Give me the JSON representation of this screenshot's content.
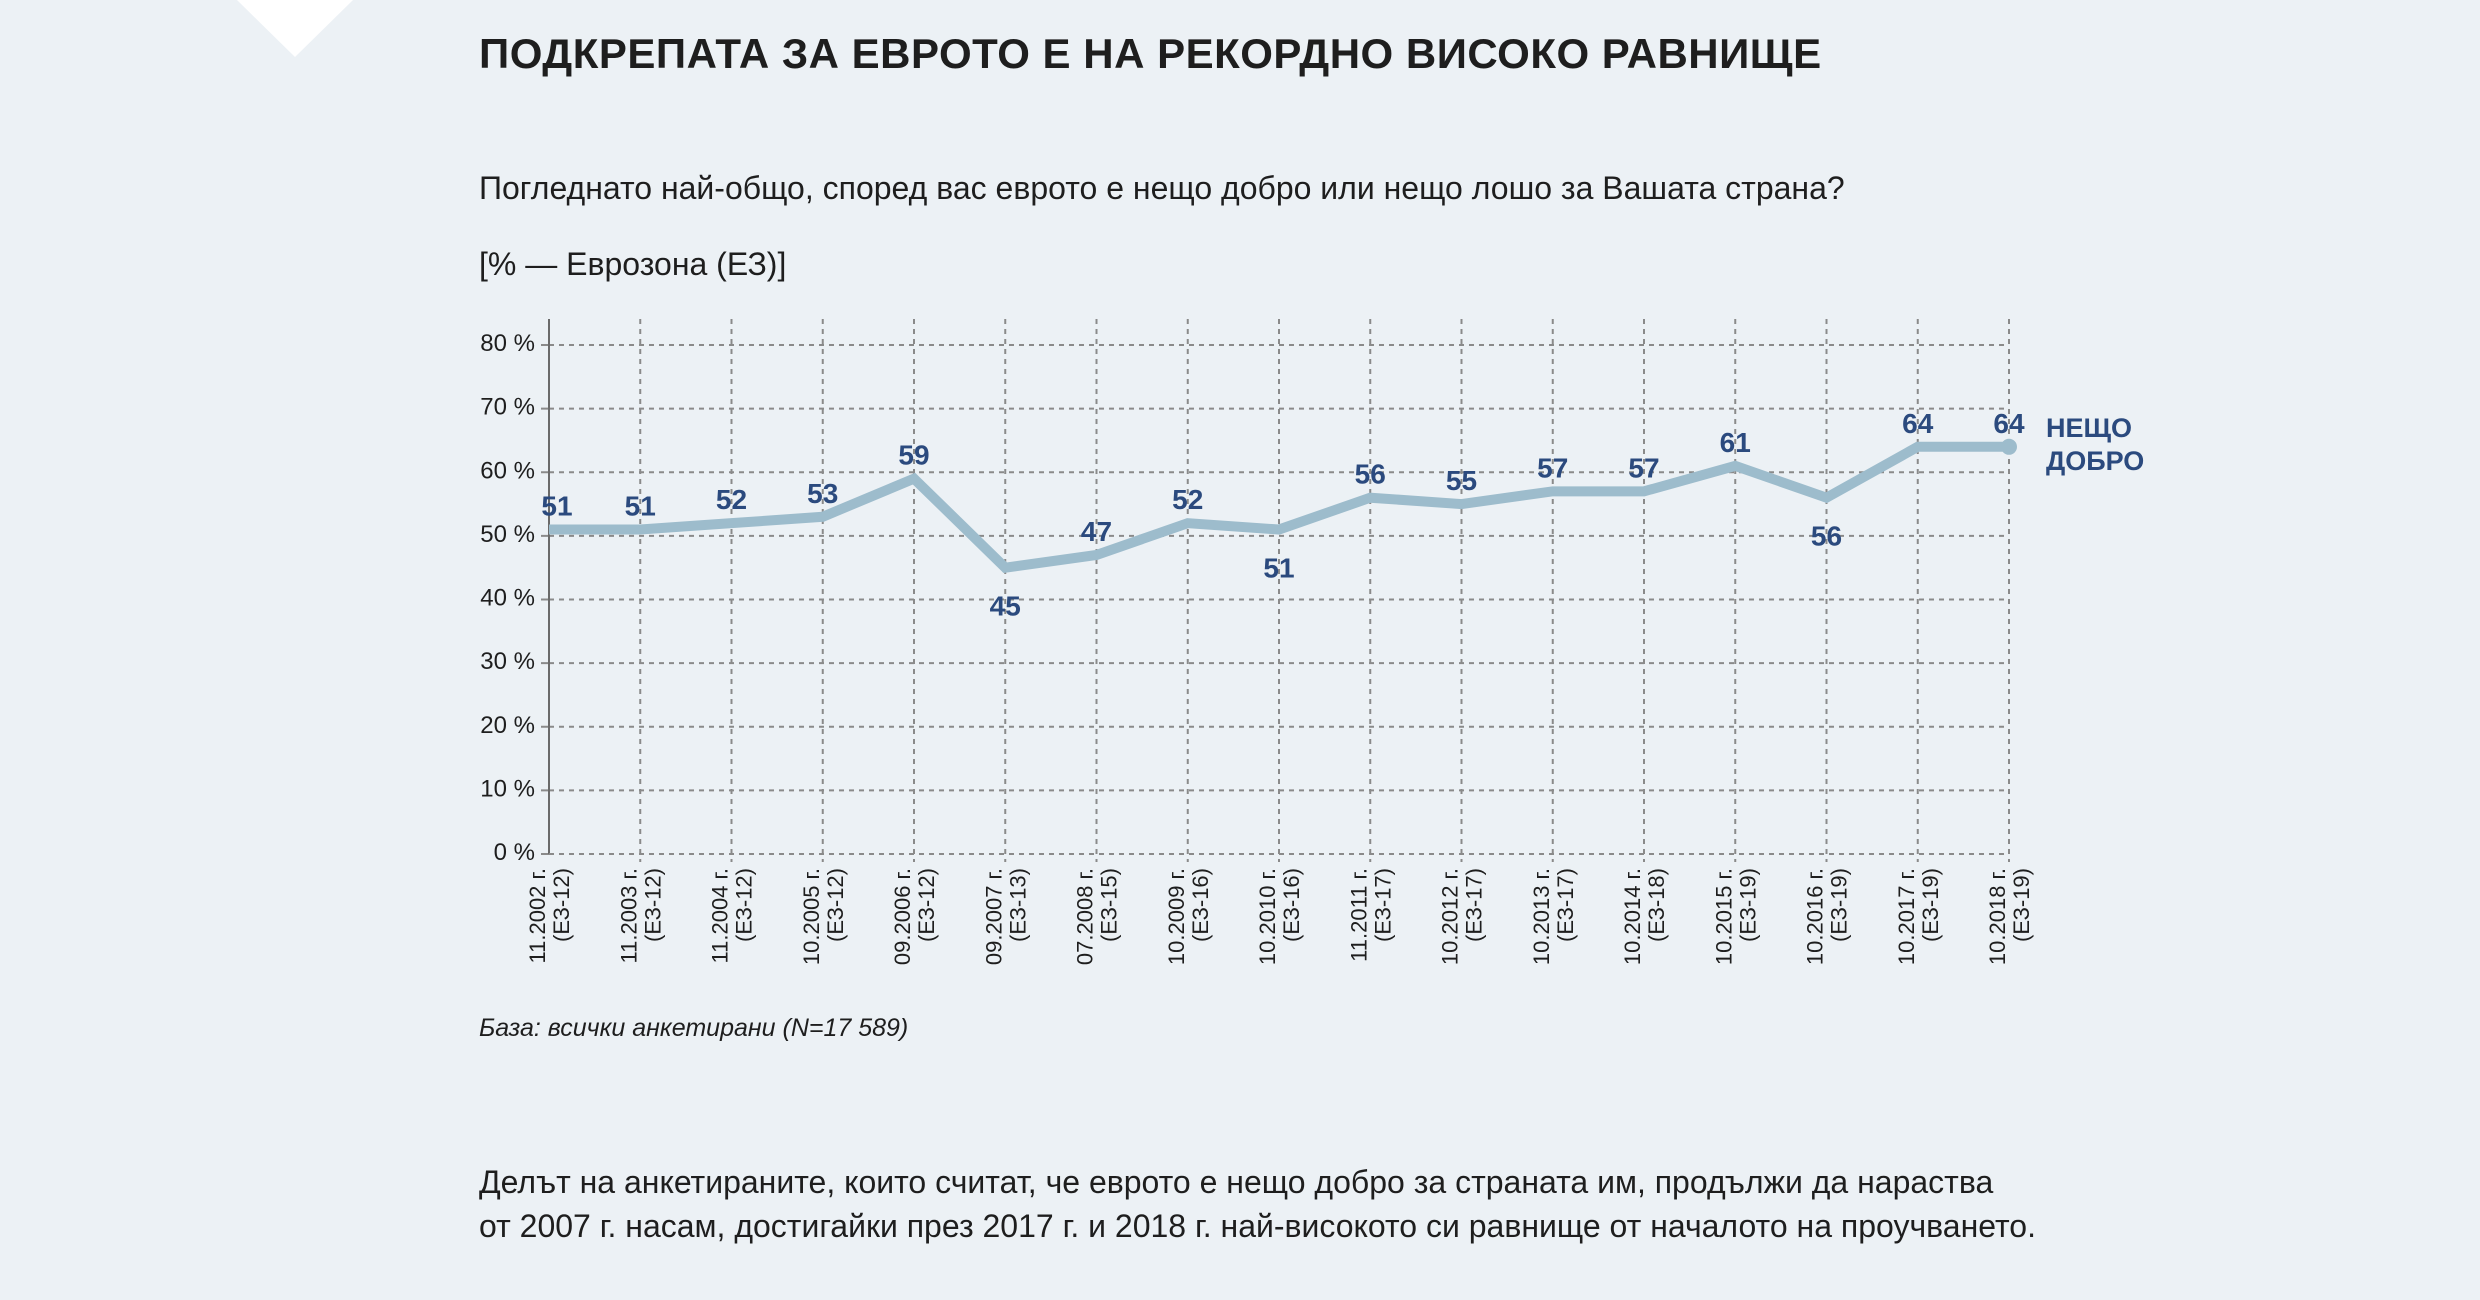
{
  "header": {
    "title": "ПОДКРЕПАТА ЗА ЕВРОТО Е НА РЕКОРДНО ВИСОКО РАВНИЩЕ",
    "question": "Погледнато най-общо, според вас еврото е нещо добро или нещо лошо за Вашата страна?",
    "unit": "[% — Еврозона (ЕЗ)]"
  },
  "footer": {
    "base": "База: всички анкетирани (N=17 589)",
    "paragraph_line1": "Делът на анкетираните, които считат, че еврото е нещо добро за страната им, продължи да нараства",
    "paragraph_line2": "от 2007 г. насам, достигайки през 2017 г. и 2018 г. най-високото си равнище от началото на проучването."
  },
  "chart_data": {
    "type": "line",
    "title": "",
    "xlabel": "",
    "ylabel": "",
    "ylim": [
      0,
      80
    ],
    "yticks": [
      "0 %",
      "10 %",
      "20 %",
      "30 %",
      "40 %",
      "50 %",
      "60 %",
      "70 %",
      "80 %"
    ],
    "grid": true,
    "colors": {
      "line": "#9dbccc",
      "labels": "#2b4a7e",
      "grid": "#8a8a8a"
    },
    "categories": [
      [
        "11.2002 г.",
        "(ЕЗ-12)"
      ],
      [
        "11.2003 г.",
        "(ЕЗ-12)"
      ],
      [
        "11.2004 г.",
        "(ЕЗ-12)"
      ],
      [
        "10.2005 г.",
        "(ЕЗ-12)"
      ],
      [
        "09.2006 г.",
        "(ЕЗ-12)"
      ],
      [
        "09.2007 г.",
        "(ЕЗ-13)"
      ],
      [
        "07.2008 г.",
        "(ЕЗ-15)"
      ],
      [
        "10.2009 г.",
        "(ЕЗ-16)"
      ],
      [
        "10.2010 г.",
        "(ЕЗ-16)"
      ],
      [
        "11.2011 г.",
        "(ЕЗ-17)"
      ],
      [
        "10.2012 г.",
        "(ЕЗ-17)"
      ],
      [
        "10.2013 г.",
        "(ЕЗ-17)"
      ],
      [
        "10.2014 г.",
        "(ЕЗ-18)"
      ],
      [
        "10.2015 г.",
        "(ЕЗ-19)"
      ],
      [
        "10.2016 г.",
        "(ЕЗ-19)"
      ],
      [
        "10.2017 г.",
        "(ЕЗ-19)"
      ],
      [
        "10.2018 г.",
        "(ЕЗ-19)"
      ]
    ],
    "series": [
      {
        "name": "НЕЩО ДОБРО",
        "name_lines": [
          "НЕЩО",
          "ДОБРО"
        ],
        "values": [
          51,
          51,
          52,
          53,
          59,
          45,
          47,
          52,
          51,
          56,
          55,
          57,
          57,
          61,
          56,
          64,
          64
        ],
        "label_below": [
          false,
          false,
          false,
          false,
          false,
          true,
          false,
          false,
          true,
          false,
          false,
          false,
          false,
          false,
          true,
          false,
          false
        ]
      }
    ]
  }
}
